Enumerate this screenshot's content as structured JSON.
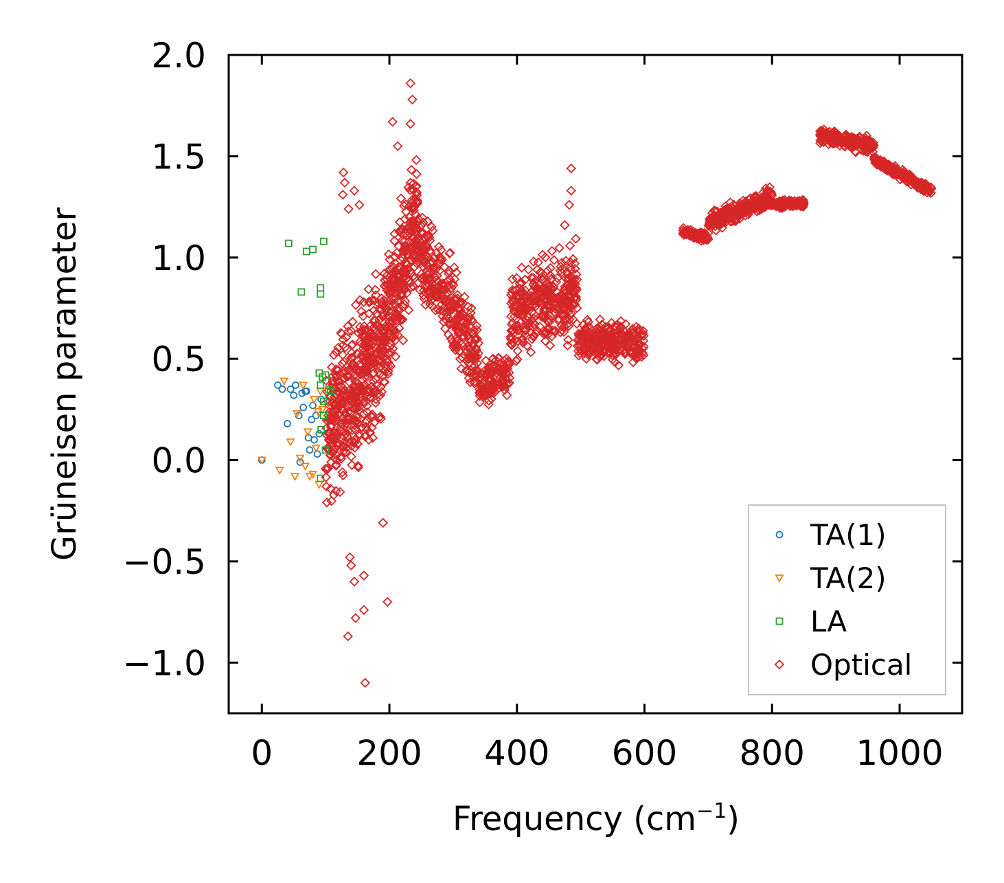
{
  "chart_data": {
    "type": "scatter",
    "title": "",
    "xlabel": "Frequency (cm",
    "xlabel_sup": "−1",
    "xlabel_close": ")",
    "ylabel": "Grüneisen parameter",
    "xlim": [
      -52,
      1098
    ],
    "ylim": [
      -1.25,
      2.0
    ],
    "xticks": [
      0,
      200,
      400,
      600,
      800,
      1000
    ],
    "xtick_labels": [
      "0",
      "200",
      "400",
      "600",
      "800",
      "1000"
    ],
    "yticks": [
      -1.0,
      -0.5,
      0.0,
      0.5,
      1.0,
      1.5,
      2.0
    ],
    "ytick_labels": [
      "−1.0",
      "−0.5",
      "0.0",
      "0.5",
      "1.0",
      "1.5",
      "2.0"
    ],
    "legend_position": "bottom-right",
    "series": [
      {
        "name": "TA(1)",
        "marker": "circle",
        "color": "#1f77b4",
        "points": [
          [
            0,
            0.0
          ],
          [
            25,
            0.37
          ],
          [
            32,
            0.35
          ],
          [
            40,
            0.18
          ],
          [
            45,
            0.35
          ],
          [
            50,
            0.32
          ],
          [
            53,
            0.37
          ],
          [
            58,
            0.22
          ],
          [
            60,
            -0.01
          ],
          [
            63,
            0.33
          ],
          [
            65,
            0.26
          ],
          [
            68,
            0.34
          ],
          [
            70,
            0.34
          ],
          [
            73,
            0.11
          ],
          [
            75,
            0.05
          ],
          [
            78,
            0.2
          ],
          [
            80,
            0.27
          ],
          [
            82,
            0.1
          ],
          [
            85,
            0.22
          ],
          [
            87,
            0.03
          ],
          [
            90,
            0.13
          ],
          [
            93,
            0.3
          ]
        ]
      },
      {
        "name": "TA(2)",
        "marker": "triangle-down",
        "color": "#ff7f0e",
        "points": [
          [
            0,
            0.0
          ],
          [
            28,
            -0.05
          ],
          [
            35,
            0.39
          ],
          [
            45,
            0.09
          ],
          [
            52,
            -0.08
          ],
          [
            55,
            0.23
          ],
          [
            60,
            0.01
          ],
          [
            65,
            0.37
          ],
          [
            68,
            -0.03
          ],
          [
            72,
            0.14
          ],
          [
            75,
            -0.08
          ],
          [
            80,
            -0.07
          ],
          [
            82,
            0.3
          ],
          [
            85,
            0.06
          ],
          [
            88,
            0.24
          ],
          [
            90,
            -0.12
          ],
          [
            92,
            0.34
          ],
          [
            95,
            0.25
          ]
        ]
      },
      {
        "name": "LA",
        "marker": "square",
        "color": "#2ca02c",
        "points": [
          [
            42,
            1.07
          ],
          [
            62,
            0.83
          ],
          [
            70,
            1.03
          ],
          [
            80,
            1.04
          ],
          [
            92,
            0.85
          ],
          [
            92,
            0.82
          ],
          [
            97,
            1.08
          ],
          [
            90,
            0.43
          ],
          [
            95,
            0.41
          ],
          [
            100,
            0.42
          ],
          [
            105,
            0.35
          ],
          [
            108,
            0.34
          ],
          [
            92,
            0.37
          ],
          [
            97,
            0.22
          ],
          [
            100,
            0.05
          ],
          [
            93,
            0.15
          ],
          [
            92,
            -0.09
          ],
          [
            97,
            0.29
          ]
        ]
      },
      {
        "name": "Optical",
        "marker": "diamond",
        "color": "#d62728",
        "outliers": [
          [
            233,
            1.86
          ],
          [
            205,
            1.67
          ],
          [
            233,
            1.66
          ],
          [
            128,
            1.42
          ],
          [
            130,
            1.37
          ],
          [
            145,
            1.33
          ],
          [
            127,
            1.31
          ],
          [
            153,
            1.26
          ],
          [
            136,
            1.24
          ],
          [
            485,
            1.44
          ],
          [
            485,
            1.33
          ],
          [
            482,
            1.26
          ],
          [
            475,
            1.16
          ],
          [
            135,
            -0.87
          ],
          [
            147,
            -0.78
          ],
          [
            162,
            -1.1
          ],
          [
            160,
            -0.74
          ],
          [
            197,
            -0.7
          ],
          [
            145,
            -0.6
          ],
          [
            160,
            -0.57
          ],
          [
            140,
            -0.52
          ],
          [
            190,
            -0.31
          ],
          [
            138,
            -0.48
          ],
          [
            236,
            1.78
          ],
          [
            213,
            1.55
          ]
        ],
        "bands": [
          {
            "x": [
              100,
              195
            ],
            "y_center": [
              0.12,
              0.62
            ],
            "spread": 0.9
          },
          {
            "x": [
              195,
              245
            ],
            "y_center": [
              0.62,
              1.2
            ],
            "spread": 0.85
          },
          {
            "x": [
              245,
              340
            ],
            "y_center": [
              1.05,
              0.5
            ],
            "spread": 0.55
          },
          {
            "x": [
              340,
              390
            ],
            "y_center": [
              0.35,
              0.45
            ],
            "spread": 0.3
          },
          {
            "x": [
              390,
              495
            ],
            "y_center": [
              0.7,
              0.85
            ],
            "spread": 0.55
          },
          {
            "x": [
              495,
              600
            ],
            "y_center": [
              0.6,
              0.58
            ],
            "spread": 0.25
          },
          {
            "x": [
              660,
              700
            ],
            "y_center": [
              1.12,
              1.1
            ],
            "spread": 0.06
          },
          {
            "x": [
              700,
              800
            ],
            "y_center": [
              1.17,
              1.3
            ],
            "spread": 0.12
          },
          {
            "x": [
              800,
              850
            ],
            "y_center": [
              1.26,
              1.27
            ],
            "spread": 0.05
          },
          {
            "x": [
              875,
              960
            ],
            "y_center": [
              1.6,
              1.55
            ],
            "spread": 0.1
          },
          {
            "x": [
              960,
              1050
            ],
            "y_center": [
              1.48,
              1.33
            ],
            "spread": 0.06
          }
        ]
      }
    ]
  }
}
